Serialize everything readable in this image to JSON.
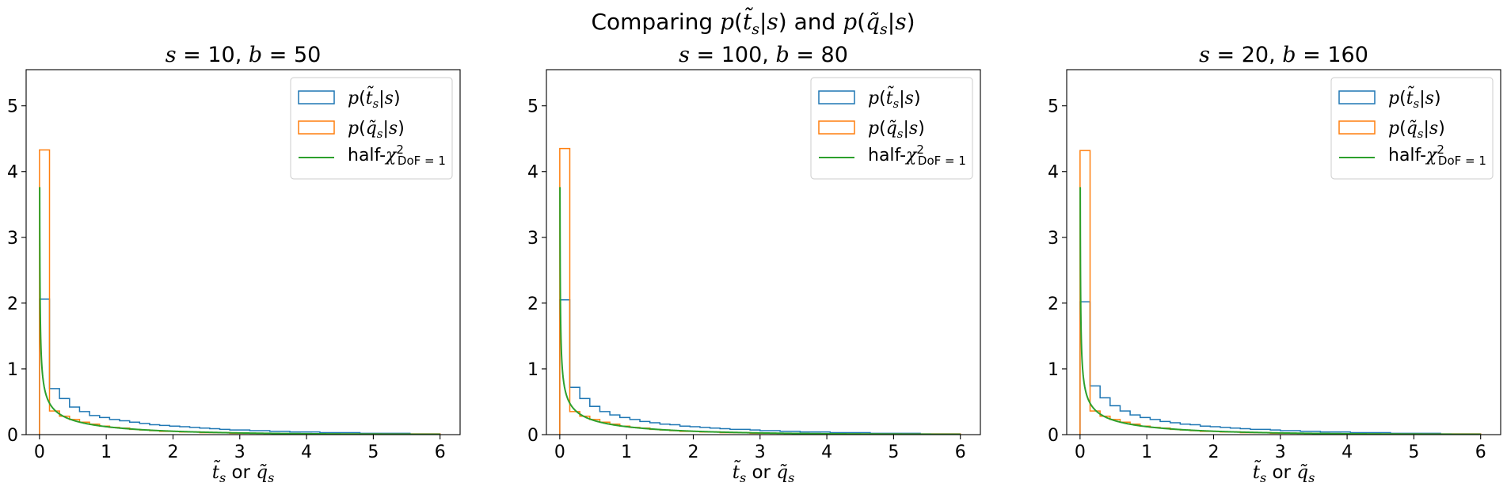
{
  "figure": {
    "title": "Comparing p(t̃s|s) and p(q̃s|s)",
    "colors": {
      "t_hist": "#1f77b4",
      "q_hist": "#ff7f0e",
      "chi2": "#2ca02c"
    }
  },
  "chart_data": [
    {
      "type": "histogram",
      "title": "s = 10, b = 50",
      "xlabel": "t̃s or q̃s",
      "xlim": [
        -0.2,
        6.3
      ],
      "ylim": [
        0,
        5.55
      ],
      "xticks": [
        "0",
        "1",
        "2",
        "3",
        "4",
        "5",
        "6"
      ],
      "yticks": [
        "0",
        "1",
        "2",
        "3",
        "4",
        "5"
      ],
      "legend": {
        "position": "top-right",
        "entries": [
          "p(t̃s|s)",
          "p(q̃s|s)",
          "half-χ²DoF=1"
        ]
      },
      "bin_edges": [
        0,
        0.15,
        0.3,
        0.45,
        0.6,
        0.75,
        0.9,
        1.05,
        1.2,
        1.35,
        1.5,
        1.65,
        1.8,
        1.95,
        2.1,
        2.25,
        2.4,
        2.55,
        2.7,
        2.85,
        3.0,
        3.15,
        3.3,
        3.45,
        3.6,
        3.75,
        3.9,
        4.05,
        4.2,
        4.35,
        4.5,
        4.65,
        4.8,
        4.95,
        5.1,
        5.25,
        5.4,
        5.55,
        5.7,
        5.85,
        6.0
      ],
      "series": [
        {
          "name": "p(t̃s|s)",
          "style": "step",
          "values": [
            2.06,
            0.7,
            0.55,
            0.42,
            0.35,
            0.29,
            0.26,
            0.23,
            0.21,
            0.19,
            0.17,
            0.15,
            0.14,
            0.13,
            0.12,
            0.11,
            0.1,
            0.09,
            0.08,
            0.07,
            0.07,
            0.06,
            0.06,
            0.05,
            0.05,
            0.04,
            0.04,
            0.04,
            0.03,
            0.03,
            0.03,
            0.03,
            0.02,
            0.02,
            0.02,
            0.02,
            0.02,
            0.01,
            0.01,
            0.01
          ]
        },
        {
          "name": "p(q̃s|s)",
          "style": "step",
          "values": [
            4.33,
            0.36,
            0.28,
            0.23,
            0.19,
            0.16,
            0.13,
            0.11,
            0.1,
            0.08,
            0.07,
            0.06,
            0.05,
            0.05,
            0.04,
            0.04,
            0.03,
            0.03,
            0.03,
            0.02,
            0.02,
            0.02,
            0.02,
            0.02,
            0.01,
            0.01,
            0.01,
            0.01,
            0.01,
            0.01,
            0.01,
            0.01,
            0.01,
            0.01,
            0.01,
            0.01,
            0.01,
            0.01,
            0.01,
            0.01
          ]
        },
        {
          "name": "half-χ²DoF=1",
          "style": "curve",
          "function": "0.5 * chi2_pdf(x, dof=1)",
          "x_range": [
            0.0028,
            6
          ],
          "y_max_shown": 5.33
        }
      ]
    },
    {
      "type": "histogram",
      "title": "s = 100, b = 80",
      "xlabel": "t̃s or q̃s",
      "xlim": [
        -0.2,
        6.3
      ],
      "ylim": [
        0,
        5.55
      ],
      "xticks": [
        "0",
        "1",
        "2",
        "3",
        "4",
        "5",
        "6"
      ],
      "yticks": [
        "0",
        "1",
        "2",
        "3",
        "4",
        "5"
      ],
      "legend": {
        "position": "top-right",
        "entries": [
          "p(t̃s|s)",
          "p(q̃s|s)",
          "half-χ²DoF=1"
        ]
      },
      "bin_edges": [
        0,
        0.15,
        0.3,
        0.45,
        0.6,
        0.75,
        0.9,
        1.05,
        1.2,
        1.35,
        1.5,
        1.65,
        1.8,
        1.95,
        2.1,
        2.25,
        2.4,
        2.55,
        2.7,
        2.85,
        3.0,
        3.15,
        3.3,
        3.45,
        3.6,
        3.75,
        3.9,
        4.05,
        4.2,
        4.35,
        4.5,
        4.65,
        4.8,
        4.95,
        5.1,
        5.25,
        5.4,
        5.55,
        5.7,
        5.85,
        6.0
      ],
      "series": [
        {
          "name": "p(t̃s|s)",
          "style": "step",
          "values": [
            2.05,
            0.72,
            0.55,
            0.43,
            0.35,
            0.3,
            0.26,
            0.23,
            0.2,
            0.18,
            0.16,
            0.15,
            0.13,
            0.12,
            0.11,
            0.1,
            0.09,
            0.08,
            0.08,
            0.07,
            0.06,
            0.06,
            0.05,
            0.05,
            0.04,
            0.04,
            0.04,
            0.03,
            0.03,
            0.03,
            0.03,
            0.02,
            0.02,
            0.02,
            0.02,
            0.02,
            0.01,
            0.01,
            0.01,
            0.01
          ]
        },
        {
          "name": "p(q̃s|s)",
          "style": "step",
          "values": [
            4.35,
            0.35,
            0.28,
            0.23,
            0.19,
            0.16,
            0.13,
            0.11,
            0.1,
            0.08,
            0.07,
            0.06,
            0.05,
            0.05,
            0.04,
            0.04,
            0.03,
            0.03,
            0.03,
            0.02,
            0.02,
            0.02,
            0.02,
            0.02,
            0.01,
            0.01,
            0.01,
            0.01,
            0.01,
            0.01,
            0.01,
            0.01,
            0.01,
            0.01,
            0.01,
            0.01,
            0.01,
            0.01,
            0.01,
            0.01
          ]
        },
        {
          "name": "half-χ²DoF=1",
          "style": "curve",
          "function": "0.5 * chi2_pdf(x, dof=1)",
          "x_range": [
            0.0028,
            6
          ],
          "y_max_shown": 5.33
        }
      ]
    },
    {
      "type": "histogram",
      "title": "s = 20, b = 160",
      "xlabel": "t̃s or q̃s",
      "xlim": [
        -0.2,
        6.3
      ],
      "ylim": [
        0,
        5.55
      ],
      "xticks": [
        "0",
        "1",
        "2",
        "3",
        "4",
        "5",
        "6"
      ],
      "yticks": [
        "0",
        "1",
        "2",
        "3",
        "4",
        "5"
      ],
      "legend": {
        "position": "top-right",
        "entries": [
          "p(t̃s|s)",
          "p(q̃s|s)",
          "half-χ²DoF=1"
        ]
      },
      "bin_edges": [
        0,
        0.15,
        0.3,
        0.45,
        0.6,
        0.75,
        0.9,
        1.05,
        1.2,
        1.35,
        1.5,
        1.65,
        1.8,
        1.95,
        2.1,
        2.25,
        2.4,
        2.55,
        2.7,
        2.85,
        3.0,
        3.15,
        3.3,
        3.45,
        3.6,
        3.75,
        3.9,
        4.05,
        4.2,
        4.35,
        4.5,
        4.65,
        4.8,
        4.95,
        5.1,
        5.25,
        5.4,
        5.55,
        5.7,
        5.85,
        6.0
      ],
      "series": [
        {
          "name": "p(t̃s|s)",
          "style": "step",
          "values": [
            2.02,
            0.74,
            0.56,
            0.44,
            0.36,
            0.3,
            0.26,
            0.23,
            0.2,
            0.18,
            0.16,
            0.15,
            0.13,
            0.12,
            0.11,
            0.1,
            0.09,
            0.08,
            0.08,
            0.07,
            0.06,
            0.06,
            0.05,
            0.05,
            0.04,
            0.04,
            0.04,
            0.03,
            0.03,
            0.03,
            0.03,
            0.02,
            0.02,
            0.02,
            0.02,
            0.02,
            0.01,
            0.01,
            0.01,
            0.01
          ]
        },
        {
          "name": "p(q̃s|s)",
          "style": "step",
          "values": [
            4.32,
            0.36,
            0.28,
            0.23,
            0.19,
            0.16,
            0.13,
            0.11,
            0.1,
            0.08,
            0.07,
            0.06,
            0.05,
            0.05,
            0.04,
            0.04,
            0.03,
            0.03,
            0.03,
            0.02,
            0.02,
            0.02,
            0.02,
            0.02,
            0.01,
            0.01,
            0.01,
            0.01,
            0.01,
            0.01,
            0.01,
            0.01,
            0.01,
            0.01,
            0.01,
            0.01,
            0.01,
            0.01,
            0.01,
            0.01
          ]
        },
        {
          "name": "half-χ²DoF=1",
          "style": "curve",
          "function": "0.5 * chi2_pdf(x, dof=1)",
          "x_range": [
            0.0028,
            6
          ],
          "y_max_shown": 5.33
        }
      ]
    }
  ]
}
